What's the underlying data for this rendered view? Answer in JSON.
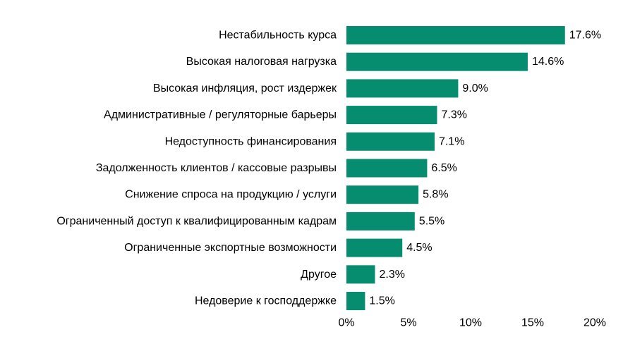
{
  "chart_data": {
    "type": "bar",
    "orientation": "horizontal",
    "title": "",
    "xlabel": "",
    "ylabel": "",
    "categories": [
      "Нестабильность курса",
      "Высокая налоговая нагрузка",
      "Высокая инфляция, рост издержек",
      "Административные / регуляторные барьеры",
      "Недоступность финансирования",
      "Задолженность клиентов / кассовые разрывы",
      "Снижение спроса на продукцию / услуги",
      "Ограниченный доступ к квалифицированным кадрам",
      "Ограниченные экспортные возможности",
      "Другое",
      "Недоверие к господдержке"
    ],
    "values": [
      17.6,
      14.6,
      9.0,
      7.3,
      7.1,
      6.5,
      5.8,
      5.5,
      4.5,
      2.3,
      1.5
    ],
    "value_labels": [
      "17.6%",
      "14.6%",
      "9.0%",
      "7.3%",
      "7.1%",
      "6.5%",
      "5.8%",
      "5.5%",
      "4.5%",
      "2.3%",
      "1.5%"
    ],
    "xlim": [
      0,
      20
    ],
    "x_ticks": [
      0,
      5,
      10,
      15,
      20
    ],
    "x_tick_labels": [
      "0%",
      "5%",
      "10%",
      "15%",
      "20%"
    ],
    "grid": false,
    "legend": "none",
    "bar_color": "#068d6f"
  }
}
